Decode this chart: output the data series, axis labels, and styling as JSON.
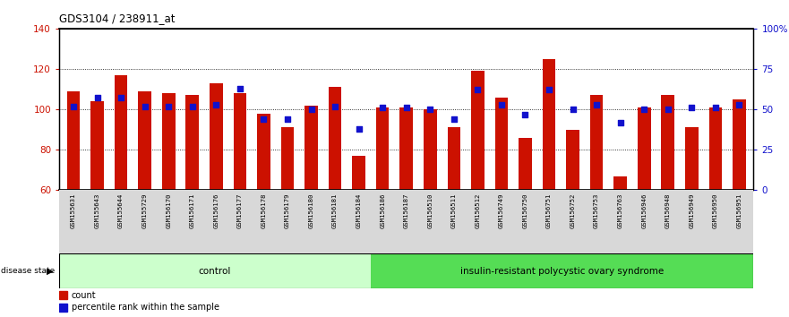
{
  "title": "GDS3104 / 238911_at",
  "samples": [
    "GSM155631",
    "GSM155643",
    "GSM155644",
    "GSM155729",
    "GSM156170",
    "GSM156171",
    "GSM156176",
    "GSM156177",
    "GSM156178",
    "GSM156179",
    "GSM156180",
    "GSM156181",
    "GSM156184",
    "GSM156186",
    "GSM156187",
    "GSM156510",
    "GSM156511",
    "GSM156512",
    "GSM156749",
    "GSM156750",
    "GSM156751",
    "GSM156752",
    "GSM156753",
    "GSM156763",
    "GSM156946",
    "GSM156948",
    "GSM156949",
    "GSM156950",
    "GSM156951"
  ],
  "bar_values": [
    109,
    104,
    117,
    109,
    108,
    107,
    113,
    108,
    98,
    91,
    102,
    111,
    77,
    101,
    101,
    100,
    91,
    119,
    106,
    86,
    125,
    90,
    107,
    67,
    101,
    107,
    91,
    101,
    105
  ],
  "dot_percentile": [
    52,
    57,
    57,
    52,
    52,
    52,
    53,
    63,
    44,
    44,
    50,
    52,
    38,
    51,
    51,
    50,
    44,
    62,
    53,
    47,
    62,
    50,
    53,
    42,
    50,
    50,
    51,
    51,
    53
  ],
  "control_count": 13,
  "group_labels": [
    "control",
    "insulin-resistant polycystic ovary syndrome"
  ],
  "ylim_left": [
    60,
    140
  ],
  "ylim_right": [
    0,
    100
  ],
  "yticks_left": [
    60,
    80,
    100,
    120,
    140
  ],
  "yticks_right": [
    0,
    25,
    50,
    75,
    100
  ],
  "yticklabels_right": [
    "0",
    "25",
    "50",
    "75",
    "100%"
  ],
  "bar_color": "#cc1100",
  "dot_color": "#1111cc",
  "control_bg": "#ccffcc",
  "disease_bg": "#55dd55",
  "axis_label_color_left": "#cc1100",
  "axis_label_color_right": "#1111cc",
  "bar_width": 0.55,
  "legend_items": [
    {
      "label": "count",
      "color": "#cc1100"
    },
    {
      "label": "percentile rank within the sample",
      "color": "#1111cc"
    }
  ]
}
